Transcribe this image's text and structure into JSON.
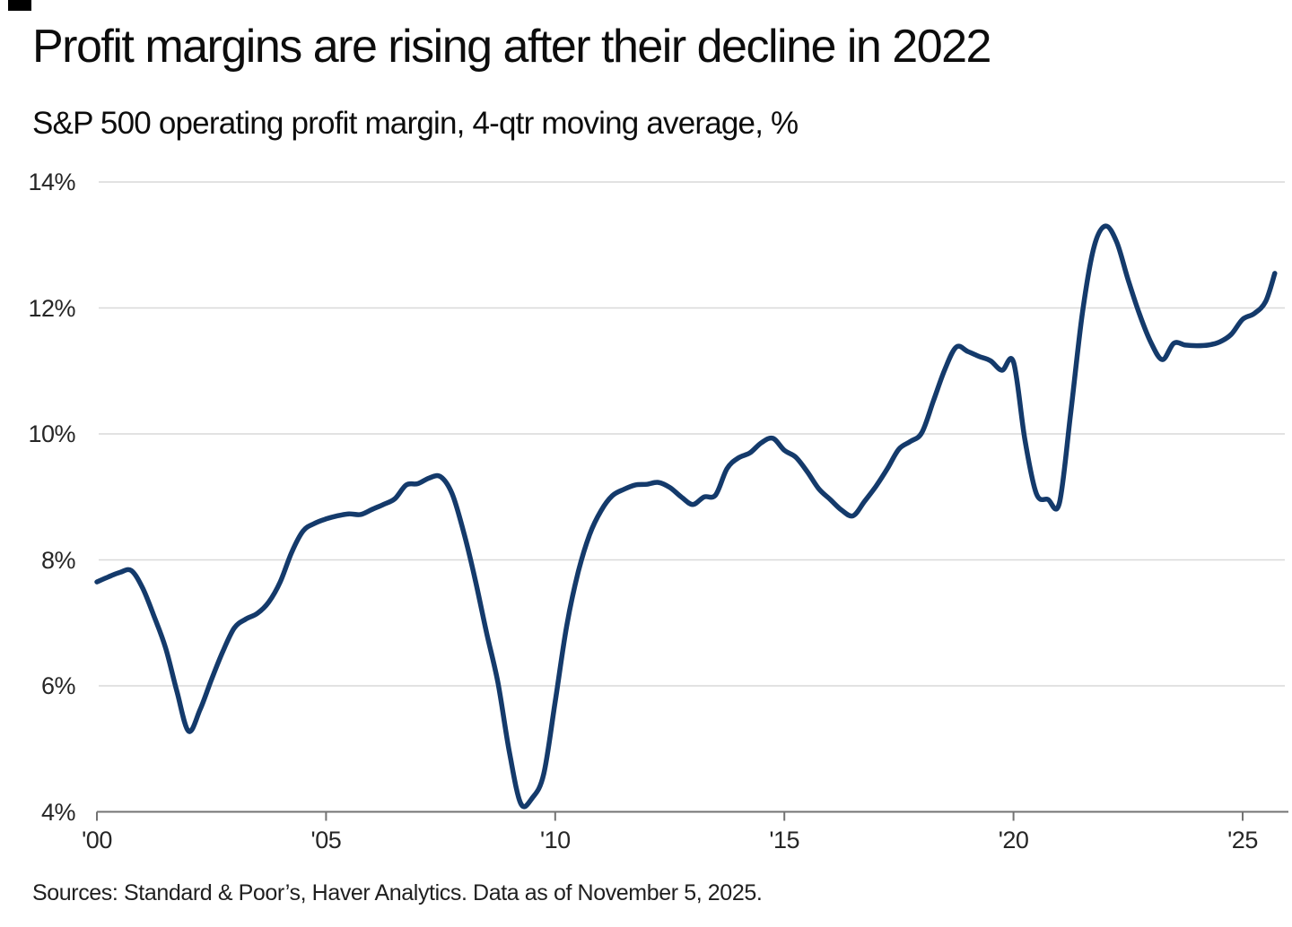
{
  "header": {
    "title": "Profit margins are rising after their decline in 2022",
    "subtitle": "S&P 500 operating profit margin, 4-qtr moving average, %"
  },
  "footer": {
    "source": "Sources: Standard & Poor’s, Haver Analytics. Data as of November 5, 2025."
  },
  "colors": {
    "line": "#143a6b",
    "grid": "#d9d9d9",
    "axis": "#737373",
    "tick_text": "#262626"
  },
  "chart_data": {
    "type": "line",
    "title": "Profit margins are rising after their decline in 2022",
    "subtitle": "S&P 500 operating profit margin, 4-qtr moving average, %",
    "xlabel": "",
    "ylabel": "",
    "xlim": [
      2000,
      2025.95
    ],
    "ylim": [
      4,
      14
    ],
    "grid": "horizontal",
    "legend_position": "none",
    "x_ticks": [
      {
        "label": "'00",
        "year": 2000
      },
      {
        "label": "'05",
        "year": 2005
      },
      {
        "label": "'10",
        "year": 2010
      },
      {
        "label": "'15",
        "year": 2015
      },
      {
        "label": "'20",
        "year": 2020
      },
      {
        "label": "'25",
        "year": 2025
      }
    ],
    "y_ticks": [
      {
        "label": "14%",
        "value": 14
      },
      {
        "label": "12%",
        "value": 12
      },
      {
        "label": "10%",
        "value": 10
      },
      {
        "label": "8%",
        "value": 8
      },
      {
        "label": "6%",
        "value": 6
      },
      {
        "label": "4%",
        "value": 4
      }
    ],
    "series": [
      {
        "name": "S&P 500 operating profit margin, 4-qtr moving average",
        "unit": "%",
        "points": [
          [
            2000.0,
            7.65
          ],
          [
            2000.25,
            7.73
          ],
          [
            2000.5,
            7.8
          ],
          [
            2000.75,
            7.83
          ],
          [
            2001.0,
            7.55
          ],
          [
            2001.25,
            7.1
          ],
          [
            2001.5,
            6.6
          ],
          [
            2001.75,
            5.9
          ],
          [
            2002.0,
            5.28
          ],
          [
            2002.25,
            5.62
          ],
          [
            2002.5,
            6.1
          ],
          [
            2002.75,
            6.55
          ],
          [
            2003.0,
            6.92
          ],
          [
            2003.25,
            7.06
          ],
          [
            2003.5,
            7.15
          ],
          [
            2003.75,
            7.33
          ],
          [
            2004.0,
            7.65
          ],
          [
            2004.25,
            8.12
          ],
          [
            2004.5,
            8.46
          ],
          [
            2004.75,
            8.58
          ],
          [
            2005.0,
            8.65
          ],
          [
            2005.25,
            8.7
          ],
          [
            2005.5,
            8.73
          ],
          [
            2005.75,
            8.72
          ],
          [
            2006.0,
            8.8
          ],
          [
            2006.25,
            8.88
          ],
          [
            2006.5,
            8.97
          ],
          [
            2006.75,
            9.19
          ],
          [
            2007.0,
            9.21
          ],
          [
            2007.25,
            9.3
          ],
          [
            2007.5,
            9.32
          ],
          [
            2007.75,
            9.05
          ],
          [
            2008.0,
            8.45
          ],
          [
            2008.25,
            7.7
          ],
          [
            2008.5,
            6.85
          ],
          [
            2008.75,
            6.05
          ],
          [
            2009.0,
            4.95
          ],
          [
            2009.25,
            4.13
          ],
          [
            2009.5,
            4.22
          ],
          [
            2009.75,
            4.6
          ],
          [
            2010.0,
            5.75
          ],
          [
            2010.25,
            6.95
          ],
          [
            2010.5,
            7.8
          ],
          [
            2010.75,
            8.4
          ],
          [
            2011.0,
            8.78
          ],
          [
            2011.25,
            9.02
          ],
          [
            2011.5,
            9.12
          ],
          [
            2011.75,
            9.19
          ],
          [
            2012.0,
            9.2
          ],
          [
            2012.25,
            9.23
          ],
          [
            2012.5,
            9.15
          ],
          [
            2012.75,
            9.0
          ],
          [
            2013.0,
            8.88
          ],
          [
            2013.25,
            9.0
          ],
          [
            2013.5,
            9.03
          ],
          [
            2013.75,
            9.45
          ],
          [
            2014.0,
            9.62
          ],
          [
            2014.25,
            9.7
          ],
          [
            2014.5,
            9.86
          ],
          [
            2014.75,
            9.93
          ],
          [
            2015.0,
            9.74
          ],
          [
            2015.25,
            9.63
          ],
          [
            2015.5,
            9.4
          ],
          [
            2015.75,
            9.13
          ],
          [
            2016.0,
            8.96
          ],
          [
            2016.25,
            8.79
          ],
          [
            2016.5,
            8.7
          ],
          [
            2016.75,
            8.93
          ],
          [
            2017.0,
            9.17
          ],
          [
            2017.25,
            9.45
          ],
          [
            2017.5,
            9.76
          ],
          [
            2017.75,
            9.88
          ],
          [
            2018.0,
            10.02
          ],
          [
            2018.25,
            10.52
          ],
          [
            2018.5,
            11.02
          ],
          [
            2018.75,
            11.38
          ],
          [
            2019.0,
            11.31
          ],
          [
            2019.25,
            11.23
          ],
          [
            2019.5,
            11.16
          ],
          [
            2019.75,
            11.01
          ],
          [
            2020.0,
            11.14
          ],
          [
            2020.25,
            9.9
          ],
          [
            2020.5,
            9.05
          ],
          [
            2020.75,
            8.96
          ],
          [
            2021.0,
            8.9
          ],
          [
            2021.25,
            10.35
          ],
          [
            2021.5,
            11.9
          ],
          [
            2021.75,
            12.95
          ],
          [
            2022.0,
            13.3
          ],
          [
            2022.25,
            13.05
          ],
          [
            2022.5,
            12.45
          ],
          [
            2022.75,
            11.9
          ],
          [
            2023.0,
            11.45
          ],
          [
            2023.25,
            11.18
          ],
          [
            2023.5,
            11.44
          ],
          [
            2023.75,
            11.41
          ],
          [
            2024.0,
            11.4
          ],
          [
            2024.25,
            11.41
          ],
          [
            2024.5,
            11.46
          ],
          [
            2024.75,
            11.58
          ],
          [
            2025.0,
            11.82
          ],
          [
            2025.25,
            11.91
          ],
          [
            2025.5,
            12.1
          ],
          [
            2025.7,
            12.55
          ]
        ]
      }
    ]
  }
}
